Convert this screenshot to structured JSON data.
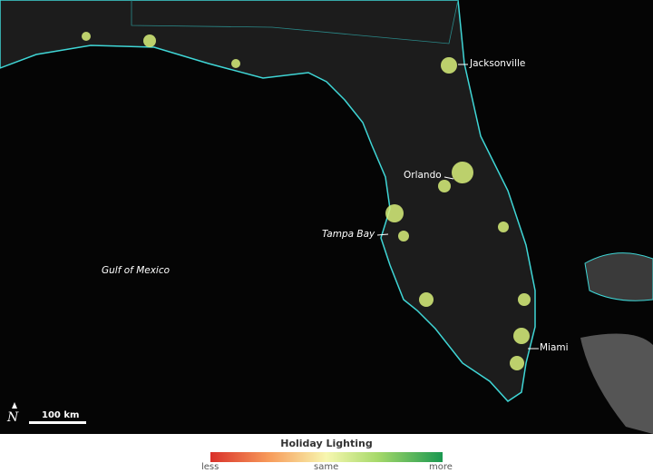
{
  "map": {
    "labels": {
      "jacksonville": "Jacksonville",
      "orlando": "Orlando",
      "tampa_bay": "Tampa Bay",
      "miami": "Miami",
      "gulf": "Gulf of Mexico"
    },
    "scale": "100 km",
    "north": "N",
    "coast_color": "#3fd6d6",
    "lights_color": "#d8f07a"
  },
  "legend": {
    "title": "Holiday Lighting",
    "less": "less",
    "same": "same",
    "more": "more",
    "colors": [
      "#d9302a",
      "#f7f7b0",
      "#1a9850"
    ]
  }
}
